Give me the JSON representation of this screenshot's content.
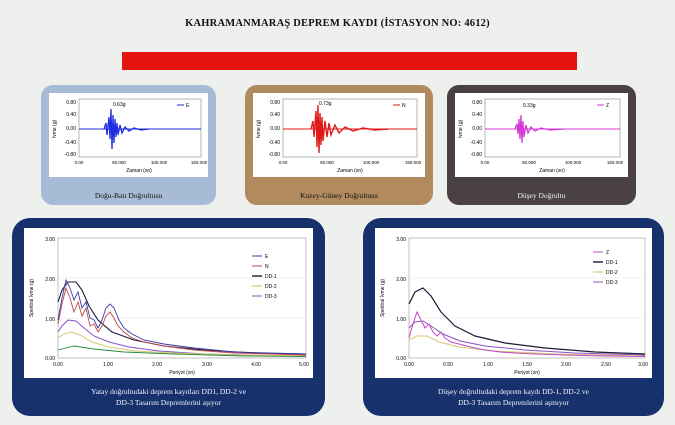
{
  "page": {
    "title": "KAHRAMANMARAŞ DEPREM KAYDI (İSTASYON NO: 4612)",
    "subtitle_bar": ""
  },
  "colors": {
    "red_bar": "#e3130f",
    "frame_blue": "#a8bbd6",
    "frame_tan": "#b18a5e",
    "frame_dark": "#4a4242",
    "frame_navy": "#16316b",
    "trace_blue": "#1f2ee0",
    "trace_red": "#e01a1a",
    "trace_magenta": "#d63ad6"
  },
  "panels": [
    {
      "caption": "Doğu-Batı Doğrultusu",
      "legend": "E",
      "peak_label": "0.63g",
      "ylabel": "İvme (g)",
      "xlabel": "Zaman (sn)",
      "yticks": [
        "0.80",
        "0.40",
        "0.00",
        "-0.40",
        "-0.80"
      ],
      "xticks": [
        "0.00",
        "50.000",
        "100.000",
        "150.000"
      ]
    },
    {
      "caption": "Kuzey-Güney Doğrultusu",
      "legend": "N",
      "peak_label": "0.73g",
      "ylabel": "İvme (g)",
      "xlabel": "Zaman (sn)",
      "yticks": [
        "0.80",
        "0.40",
        "0.00",
        "-0.40",
        "-0.80"
      ],
      "xticks": [
        "0.00",
        "50.000",
        "100.000",
        "150.000"
      ]
    },
    {
      "caption": "Düşey Doğrultu",
      "legend": "Z",
      "peak_label": "0.33g",
      "ylabel": "İvme (g)",
      "xlabel": "Zaman (sn)",
      "yticks": [
        "0.80",
        "0.40",
        "0.00",
        "-0.40",
        "-0.80"
      ],
      "xticks": [
        "0.00",
        "50.000",
        "100.000",
        "150.000"
      ]
    }
  ],
  "spectra_horizontal": {
    "caption_line1": "Yatay doğrultudaki deprem kayıtları DD1, DD-2 ve",
    "caption_line2": "DD-3 Tasarım Depremlerini aşıyor",
    "ylabel": "Spektral İvme (g)",
    "xlabel": "Periyot (sn)",
    "yticks": [
      "3.00",
      "2.00",
      "1.00",
      "0.00"
    ],
    "xticks": [
      "0.00",
      "1.00",
      "2.00",
      "3.00",
      "4.00",
      "5.00"
    ],
    "legend": [
      "E",
      "N",
      "DD-1",
      "DD-2",
      "DD-3"
    ]
  },
  "spectra_vertical": {
    "caption_line1": "Düşey doğrultudaki deprem kaydı DD-1, DD-2 ve",
    "caption_line2": "DD-3 Tasarım Depremlerini aşmıyor",
    "ylabel": "Spektral İvme (g)",
    "xlabel": "Periyot (sn)",
    "yticks": [
      "3.00",
      "2.00",
      "1.00",
      "0.00"
    ],
    "xticks": [
      "0.00",
      "0.50",
      "1.00",
      "1.50",
      "2.00",
      "2.50",
      "3.00"
    ],
    "legend": [
      "Z",
      "DD-1",
      "DD-2",
      "DD-3"
    ]
  }
}
